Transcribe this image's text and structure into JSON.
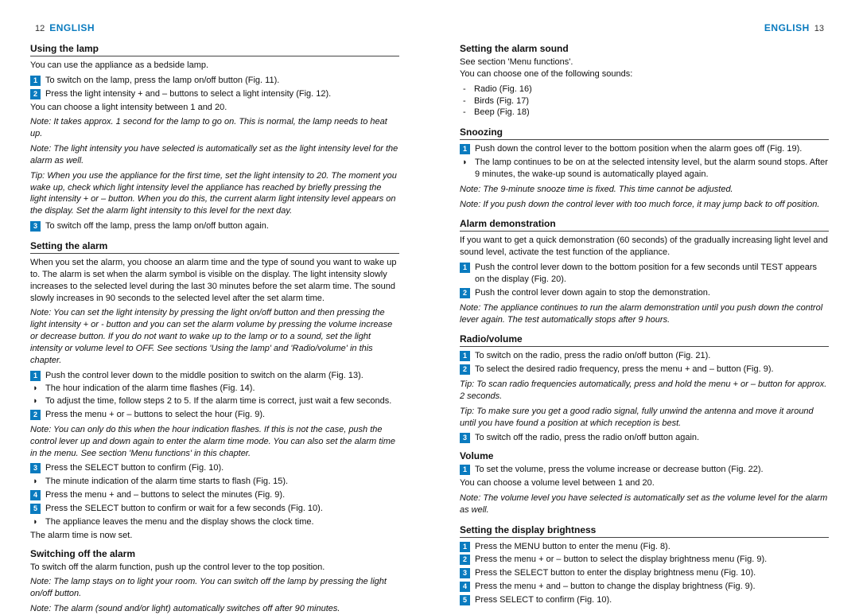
{
  "left": {
    "page_num": "12",
    "lang": "ENGLISH",
    "s_using_lamp": {
      "title": "Using the lamp",
      "intro": "You can use the appliance as a bedside lamp.",
      "step1": "To switch on the lamp, press the lamp on/off button (Fig. 11).",
      "step2": "Press the light intensity + and – buttons to select a light intensity (Fig. 12).",
      "sub2": "You can choose a light intensity between 1 and 20.",
      "note1": "Note: It takes approx. 1 second for the lamp to go on. This is normal, the lamp needs to heat up.",
      "note2": "Note: The light intensity you have selected is automatically set as the light intensity level for the alarm as well.",
      "tip": "Tip: When you use the appliance for the first time, set the light intensity to 20. The moment you wake up, check which light intensity level the appliance has reached by briefly pressing the light intensity + or – button. When you do this, the current alarm light intensity level appears on the display. Set the alarm light intensity to this level for the next day.",
      "step3": "To switch off the lamp, press the lamp on/off button again."
    },
    "s_set_alarm": {
      "title": "Setting the alarm",
      "intro": "When you set the alarm, you choose an alarm time and the type of sound you want to wake up to. The alarm is set when the alarm symbol is visible on the display. The light intensity slowly increases to the selected level during the last 30 minutes before the set alarm time. The sound slowly increases in 90 seconds to the selected level after the set alarm time.",
      "note1": "Note: You can set the light intensity by pressing the light on/off button and then pressing the light intensity + or - button and you can set the alarm volume by pressing the volume increase or decrease button. If you do not want to wake up to the lamp or to a sound, set the light intensity or volume level to OFF. See sections 'Using the lamp' and 'Radio/volume' in this chapter.",
      "step1": "Push the control lever down to the middle position to switch on the alarm (Fig. 13).",
      "b1a": "The hour indication of the alarm time flashes (Fig. 14).",
      "b1b": "To adjust the time, follow steps 2 to 5. If the alarm time is correct, just wait a few seconds.",
      "step2": "Press the menu + or – buttons to select the hour (Fig. 9).",
      "note2": "Note: You can only do this when the hour indication flashes. If this is not the case, push the control lever up and down again to enter the alarm time mode. You can also set the alarm time in the menu. See section 'Menu functions' in this chapter.",
      "step3": "Press the SELECT button to confirm (Fig. 10).",
      "b3": "The minute indication of the alarm time starts to flash (Fig. 15).",
      "step4": "Press the menu + and – buttons to select the minutes (Fig. 9).",
      "step5": "Press the SELECT button to confirm or wait for a few seconds (Fig. 10).",
      "b5": "The appliance leaves the menu and the display shows the clock time.",
      "out": "The alarm time is now set."
    },
    "s_switch_off": {
      "title": "Switching off the alarm",
      "intro": "To switch off the alarm function, push up the control lever to the top position.",
      "note1": "Note: The lamp stays on to light your room. You can switch off the lamp by pressing the light on/off button.",
      "note2": "Note: The alarm (sound and/or light) automatically switches off after 90 minutes."
    }
  },
  "right": {
    "lang": "ENGLISH",
    "page_num": "13",
    "s_sound": {
      "title": "Setting the alarm sound",
      "l1": "See section 'Menu functions'.",
      "l2": "You can choose one of the following sounds:",
      "d1": "Radio (Fig. 16)",
      "d2": "Birds (Fig. 17)",
      "d3": "Beep (Fig. 18)"
    },
    "s_snooze": {
      "title": "Snoozing",
      "step1": "Push down the control lever to the bottom position when the alarm goes off  (Fig. 19).",
      "b1": "The lamp continues to be on at the selected intensity level, but the alarm sound stops. After 9 minutes, the wake-up sound is automatically played again.",
      "note1": "Note: The 9-minute snooze time is fixed. This time cannot be adjusted.",
      "note2": "Note: If you push down the control lever with too much force, it may jump back to off position."
    },
    "s_demo": {
      "title": "Alarm demonstration",
      "intro": "If you want to get a quick demonstration (60 seconds) of the gradually increasing light level and sound level, activate the test function of the appliance.",
      "step1": "Push the control lever down to the bottom position for a few seconds until TEST appears on the display (Fig. 20).",
      "step2": "Push the control lever down again to stop the demonstration.",
      "note": "Note: The appliance continues to run the alarm demonstration until you push down the control lever again. The test automatically stops after 9 hours."
    },
    "s_radio": {
      "title": "Radio/volume",
      "step1": "To switch on the radio, press the radio on/off button (Fig. 21).",
      "step2": "To select the desired radio frequency, press the menu + and – button (Fig. 9).",
      "tip1": "Tip: To scan radio frequencies automatically, press and hold the menu + or – button for approx. 2 seconds.",
      "tip2": "Tip: To make sure you get a good radio signal, fully unwind the antenna and move it around until you have found a position at which reception is best.",
      "step3": "To switch off the radio, press the radio on/off button again."
    },
    "s_vol": {
      "title": "Volume",
      "step1": "To set the volume, press the volume increase or decrease button (Fig. 22).",
      "sub": "You can choose a volume level between 1 and 20.",
      "note": "Note: The volume level you have selected is automatically set as the volume level for the alarm as well."
    },
    "s_bright": {
      "title": "Setting the display brightness",
      "step1": "Press the MENU button to enter the menu (Fig. 8).",
      "step2": "Press the menu + or – button to select the display brightness menu (Fig. 9).",
      "step3": "Press the SELECT button to enter the display brightness menu (Fig. 10).",
      "step4": "Press the menu + and – button to change the display brightness (Fig. 9).",
      "step5": "Press SELECT to confirm (Fig. 10)."
    }
  }
}
